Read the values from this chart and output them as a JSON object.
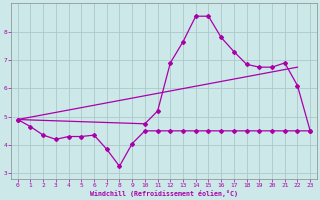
{
  "xlabel": "Windchill (Refroidissement éolien,°C)",
  "bg_color": "#cce8e8",
  "grid_color": "#aec8c8",
  "line_color": "#aa00aa",
  "x": [
    0,
    1,
    2,
    3,
    4,
    5,
    6,
    7,
    8,
    9,
    10,
    11,
    12,
    13,
    14,
    15,
    16,
    17,
    18,
    19,
    20,
    21,
    22,
    23
  ],
  "line_lower": [
    4.9,
    4.65,
    4.35,
    4.2,
    4.3,
    4.3,
    4.35,
    3.85,
    3.25,
    4.05,
    4.5,
    4.5,
    4.5,
    4.5,
    4.5,
    4.5,
    4.5,
    4.5,
    4.5,
    4.5,
    4.5,
    4.5,
    4.5,
    4.5
  ],
  "line_peak": [
    4.9,
    null,
    null,
    null,
    null,
    null,
    null,
    null,
    null,
    null,
    4.75,
    5.2,
    6.9,
    7.65,
    8.55,
    8.55,
    7.8,
    7.3,
    6.85,
    6.75,
    6.75,
    6.9,
    6.1,
    4.5
  ],
  "line_diag": [
    [
      0,
      4.9
    ],
    [
      22,
      6.75
    ]
  ],
  "ylim": [
    2.8,
    9.0
  ],
  "xlim": [
    -0.5,
    23.5
  ],
  "yticks": [
    3,
    4,
    5,
    6,
    7,
    8
  ],
  "xticks": [
    0,
    1,
    2,
    3,
    4,
    5,
    6,
    7,
    8,
    9,
    10,
    11,
    12,
    13,
    14,
    15,
    16,
    17,
    18,
    19,
    20,
    21,
    22,
    23
  ]
}
